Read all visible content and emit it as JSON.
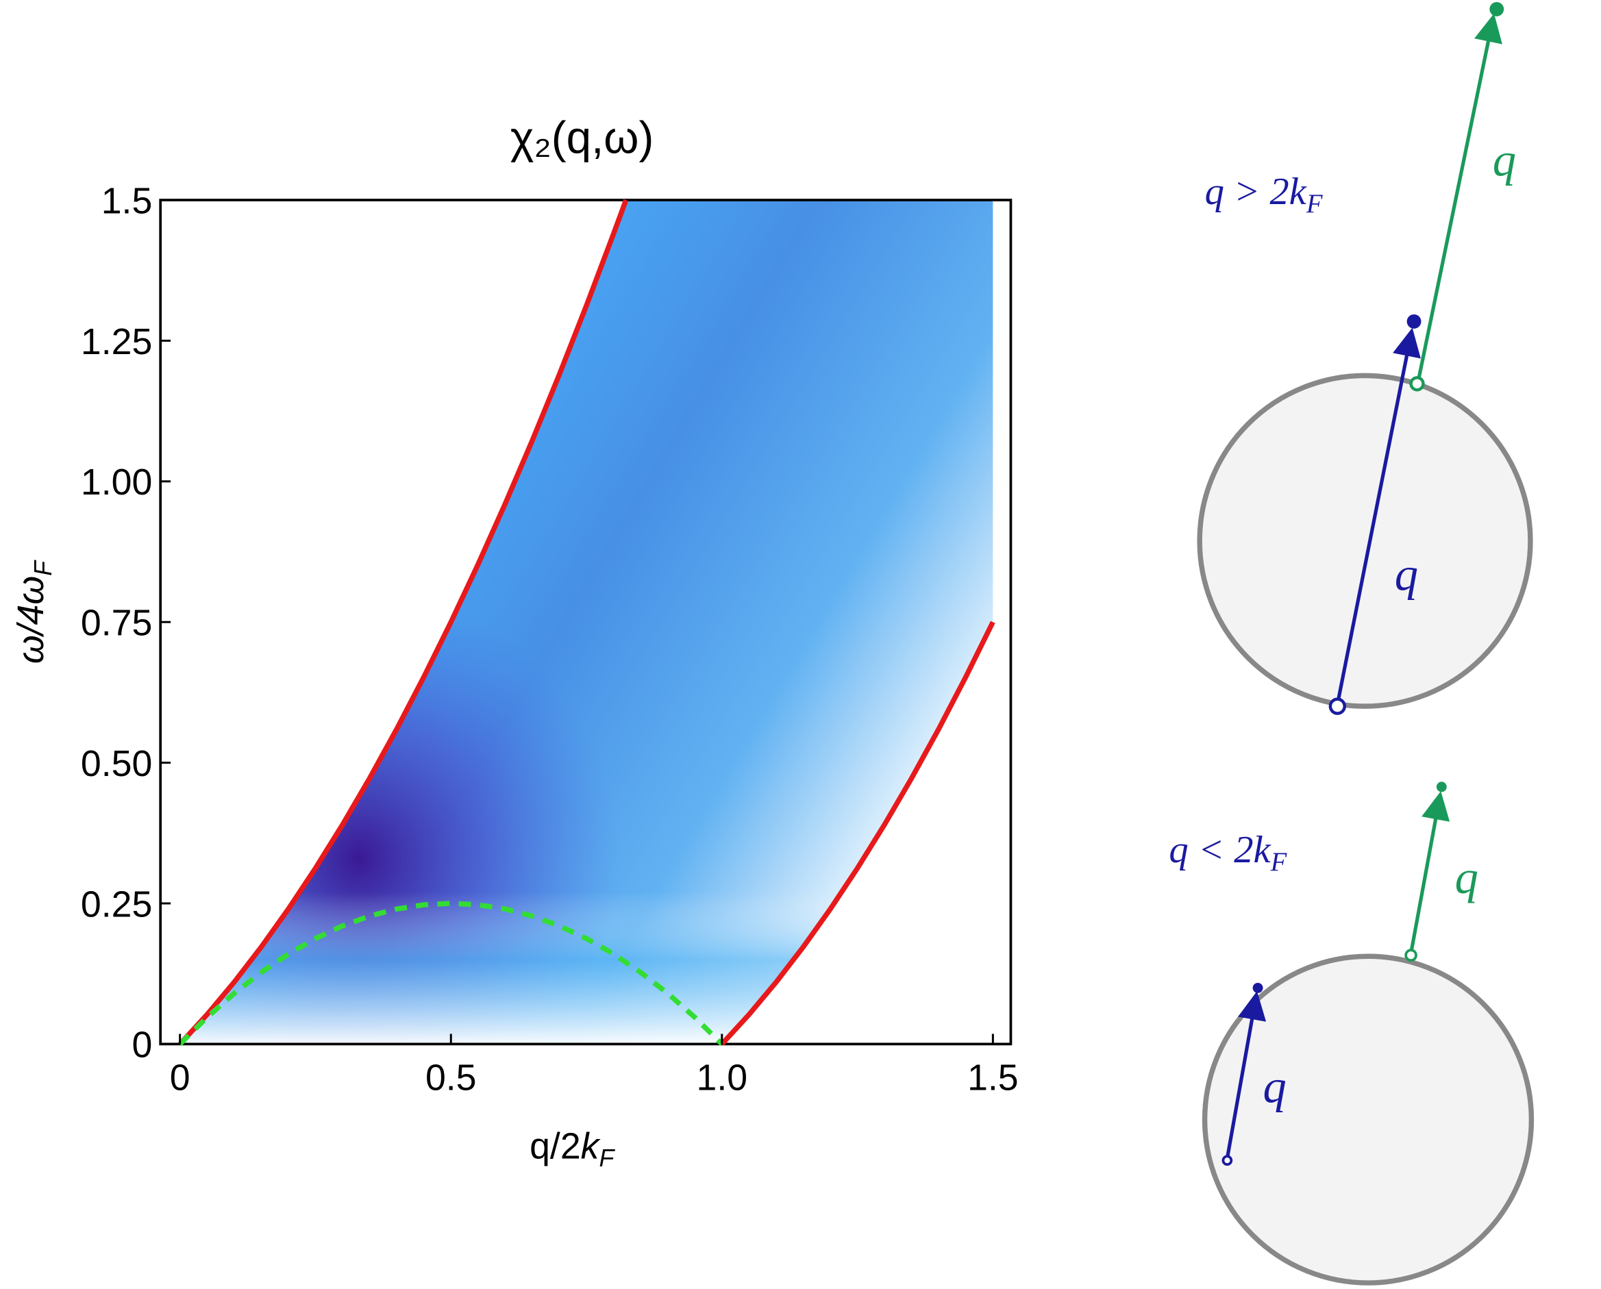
{
  "chart_data": {
    "type": "density",
    "title": "χ₂(q,ω)",
    "xlabel": {
      "text": "q/2",
      "italic": "k",
      "subscript": "F"
    },
    "ylabel": {
      "text": "ω/4ω",
      "subscript": "F"
    },
    "xlim": [
      -0.036,
      1.533
    ],
    "ylim": [
      0,
      1.5
    ],
    "xticks": [
      0,
      0.5,
      {
        "value": 1,
        "label": "1.0"
      },
      1.5
    ],
    "yticks": [
      0,
      0.25,
      {
        "value": 0.5,
        "label": "0.50"
      },
      0.75,
      {
        "value": 1,
        "label": "1.00"
      },
      1.25,
      1.5
    ],
    "series": [
      {
        "color": "#e8191b",
        "dash": false,
        "x": [
          0,
          0.05,
          0.1,
          0.15,
          0.2,
          0.25,
          0.3,
          0.35,
          0.4,
          0.45,
          0.5,
          0.55,
          0.6,
          0.65,
          0.7,
          0.75,
          0.8,
          0.823
        ],
        "values": [
          0,
          0.0525,
          0.11,
          0.1725,
          0.24,
          0.3125,
          0.39,
          0.4725,
          0.56,
          0.6525,
          0.75,
          0.8525,
          0.96,
          1.0725,
          1.19,
          1.3125,
          1.44,
          1.5
        ]
      },
      {
        "color": "#e8191b",
        "dash": false,
        "x": [
          1,
          1.05,
          1.1,
          1.15,
          1.2,
          1.25,
          1.3,
          1.35,
          1.4,
          1.45,
          1.5
        ],
        "values": [
          0,
          0.0525,
          0.11,
          0.1725,
          0.24,
          0.3125,
          0.39,
          0.4725,
          0.56,
          0.6525,
          0.75
        ]
      },
      {
        "color": "#33dd33",
        "dash": true,
        "x": [
          0,
          0.05,
          0.1,
          0.15,
          0.2,
          0.25,
          0.3,
          0.35,
          0.4,
          0.45,
          0.5,
          0.55,
          0.6,
          0.65,
          0.7,
          0.75,
          0.8,
          0.85,
          0.9,
          0.95,
          1
        ],
        "values": [
          0,
          0.0475,
          0.09,
          0.1275,
          0.16,
          0.1875,
          0.21,
          0.2275,
          0.24,
          0.2475,
          0.25,
          0.2475,
          0.24,
          0.2275,
          0.21,
          0.1875,
          0.16,
          0.1275,
          0.09,
          0.0475,
          0
        ]
      }
    ]
  },
  "annotations": [
    {
      "text": "q > 2k",
      "subscript": "F"
    },
    {
      "text": "q"
    },
    {
      "text": "q"
    },
    {
      "text": "q < 2k",
      "subscript": "F"
    },
    {
      "text": "q"
    },
    {
      "text": "q"
    }
  ]
}
